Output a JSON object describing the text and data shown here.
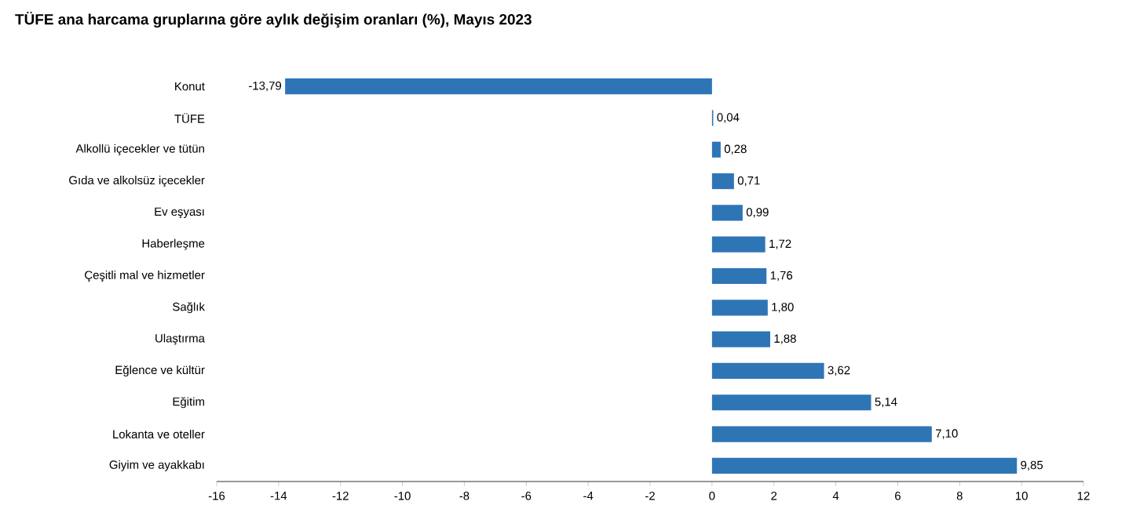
{
  "chart_data": {
    "type": "bar",
    "orientation": "horizontal",
    "title": "TÜFE ana harcama gruplarına göre aylık değişim oranları (%), Mayıs 2023",
    "categories": [
      "Konut",
      "TÜFE",
      "Alkollü içecekler ve tütün",
      "Gıda ve alkolsüz içecekler",
      "Ev eşyası",
      "Haberleşme",
      "Çeşitli mal ve hizmetler",
      "Sağlık",
      "Ulaştırma",
      "Eğlence ve kültür",
      "Eğitim",
      "Lokanta ve oteller",
      "Giyim ve ayakkabı"
    ],
    "values": [
      -13.79,
      0.04,
      0.28,
      0.71,
      0.99,
      1.72,
      1.76,
      1.8,
      1.88,
      3.62,
      5.14,
      7.1,
      9.85
    ],
    "value_labels": [
      "-13,79",
      "0,04",
      "0,28",
      "0,71",
      "0,99",
      "1,72",
      "1,76",
      "1,80",
      "1,88",
      "3,62",
      "5,14",
      "7,10",
      "9,85"
    ],
    "color": "#2e75b6",
    "xlim": [
      -16,
      12
    ],
    "xticks": [
      -16,
      -14,
      -12,
      -10,
      -8,
      -6,
      -4,
      -2,
      0,
      2,
      4,
      6,
      8,
      10,
      12
    ]
  }
}
